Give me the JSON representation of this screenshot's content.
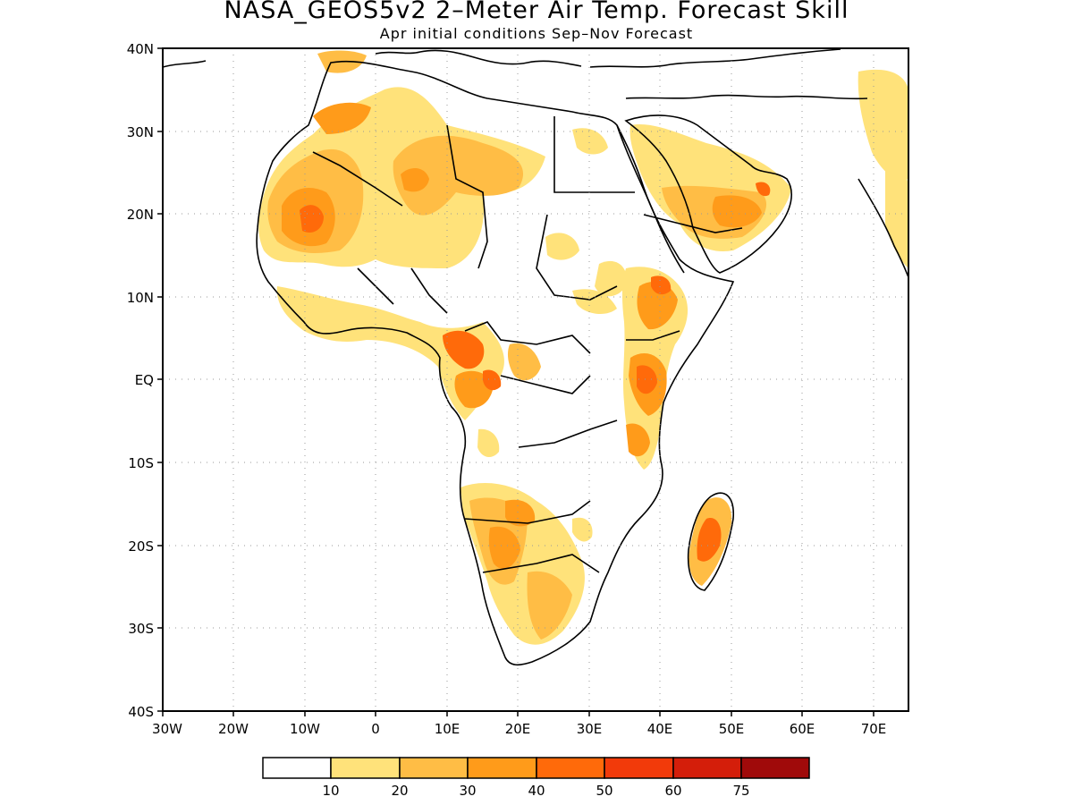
{
  "title": "NASA_GEOS5v2 2–Meter Air Temp. Forecast Skill",
  "subtitle": "Apr initial conditions  Sep–Nov Forecast",
  "axes": {
    "lat_labels": [
      "40N",
      "30N",
      "20N",
      "10N",
      "EQ",
      "10S",
      "20S",
      "30S",
      "40S"
    ],
    "lon_labels": [
      "30W",
      "20W",
      "10W",
      "0",
      "10E",
      "20E",
      "30E",
      "40E",
      "50E",
      "60E",
      "70E"
    ]
  },
  "colorbar": {
    "labels": [
      "10",
      "20",
      "30",
      "40",
      "50",
      "60",
      "75"
    ],
    "colors": [
      "#ffffff",
      "#ffe27a",
      "#ffbd45",
      "#ff9b1a",
      "#ff6a0a",
      "#f23a0a",
      "#d41e0a",
      "#a00a0a"
    ]
  },
  "chart_data": {
    "type": "heatmap",
    "lat_range": [
      -40,
      40
    ],
    "lon_range": [
      -30,
      75
    ],
    "regions": [
      {
        "lon": -12,
        "lat": 20,
        "level": 4
      },
      {
        "lon": 2,
        "lat": 24,
        "level": 3
      },
      {
        "lon": 12,
        "lat": 25,
        "level": 3
      },
      {
        "lon": 45,
        "lat": 21,
        "level": 3
      },
      {
        "lon": 40,
        "lat": 11,
        "level": 5
      },
      {
        "lon": 38,
        "lat": 2,
        "level": 4
      },
      {
        "lon": 47,
        "lat": -20,
        "level": 4
      },
      {
        "lon": 17,
        "lat": -20,
        "level": 3
      },
      {
        "lon": 12,
        "lat": 4,
        "level": 4
      },
      {
        "lon": 25,
        "lat": -25,
        "level": 2
      }
    ]
  }
}
